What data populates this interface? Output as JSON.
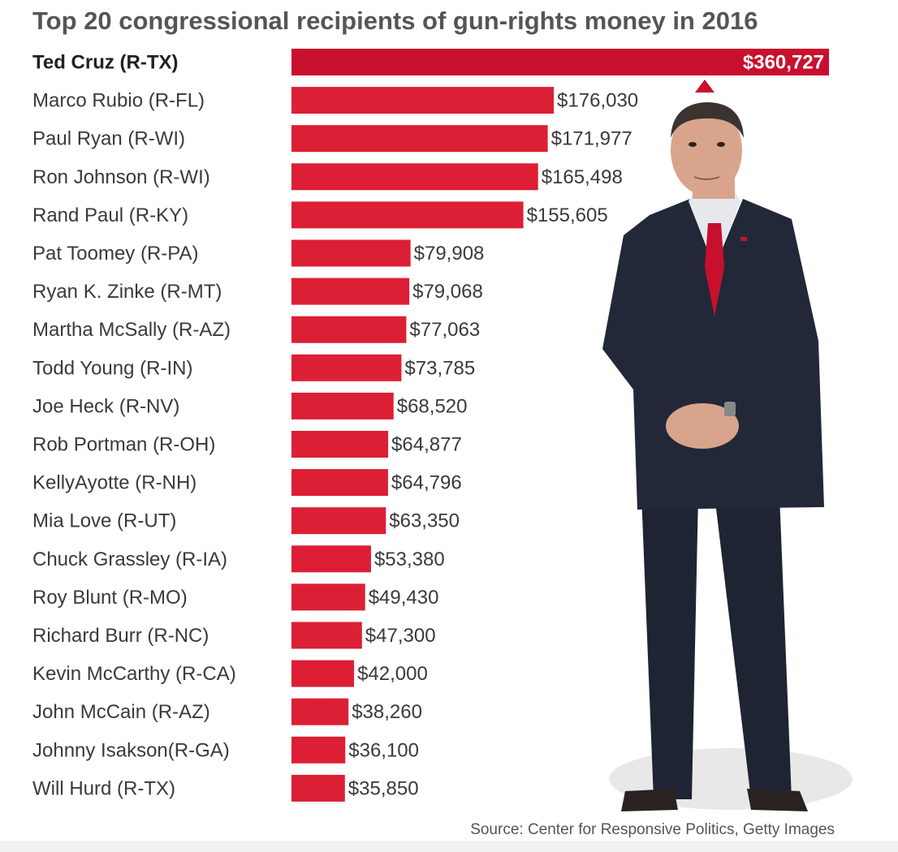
{
  "chart_data": {
    "type": "bar",
    "orientation": "horizontal",
    "title": "Top 20 congressional recipients of gun-rights money in 2016",
    "categories": [
      "Ted Cruz (R-TX)",
      "Marco Rubio (R-FL)",
      "Paul Ryan (R-WI)",
      "Ron Johnson (R-WI)",
      "Rand Paul (R-KY)",
      "Pat Toomey (R-PA)",
      "Ryan K. Zinke (R-MT)",
      "Martha McSally (R-AZ)",
      "Todd Young (R-IN)",
      "Joe Heck (R-NV)",
      "Rob Portman (R-OH)",
      "KellyAyotte (R-NH)",
      "Mia Love (R-UT)",
      "Chuck Grassley (R-IA)",
      "Roy Blunt (R-MO)",
      "Richard Burr (R-NC)",
      "Kevin McCarthy (R-CA)",
      "John McCain (R-AZ)",
      "Johnny  Isakson(R-GA)",
      "Will Hurd (R-TX)"
    ],
    "values": [
      360727,
      176030,
      171977,
      165498,
      155605,
      79908,
      79068,
      77063,
      73785,
      68520,
      64877,
      64796,
      63350,
      53380,
      49430,
      47300,
      42000,
      38260,
      36100,
      35850
    ],
    "value_labels": [
      "$360,727",
      "$176,030",
      "$171,977",
      "$165,498",
      "$155,605",
      "$79,908",
      "$79,068",
      "$77,063",
      "$73,785",
      "$68,520",
      "$64,877",
      "$64,796",
      "$63,350",
      "$53,380",
      "$49,430",
      "$47,300",
      "$42,000",
      "$38,260",
      "$36,100",
      "$35,850"
    ],
    "xlim": [
      0,
      360727
    ],
    "xlabel": "",
    "ylabel": "",
    "grid": false,
    "legend": "none"
  },
  "source": "Source: Center for Responsive Politics, Getty Images",
  "colors": {
    "bar": "#dc1f35",
    "bar_highlight": "#c8102e",
    "suit": "#232838",
    "tie": "#c8102e",
    "skin": "#d8a58c"
  }
}
